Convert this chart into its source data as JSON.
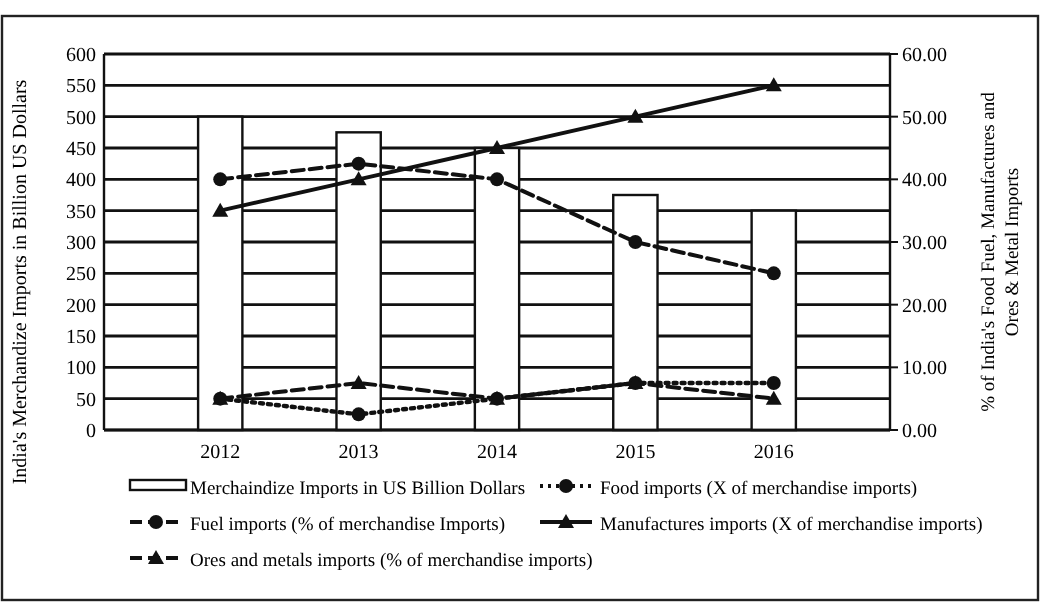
{
  "chart_data": {
    "type": "bar",
    "ylabel": "India's Merchandize Imports in Billion US Dollars",
    "y2label": "% of India's Food Fuel, Manufactures and Ores & Metal Imports",
    "categories": [
      "2012",
      "2013",
      "2014",
      "2015",
      "2016"
    ],
    "ylim": [
      0,
      600
    ],
    "yticks": [
      0,
      50,
      100,
      150,
      200,
      250,
      300,
      350,
      400,
      450,
      500,
      550,
      600
    ],
    "y2lim": [
      0,
      60
    ],
    "y2ticks": [
      {
        "value": 0,
        "label": "0.00"
      },
      {
        "value": 10,
        "label": "10.00"
      },
      {
        "value": 20,
        "label": "20.00"
      },
      {
        "value": 30,
        "label": "30.00"
      },
      {
        "value": 40,
        "label": "40.00"
      },
      {
        "value": 50,
        "label": "50.00"
      },
      {
        "value": 60,
        "label": "60.00"
      }
    ],
    "grid": "y",
    "legend": "bottom",
    "series": [
      {
        "name": "Merchaindize Imports in US Billion Dollars",
        "color": "#ffffff",
        "values": [
          500,
          475,
          450,
          375,
          350
        ]
      },
      {
        "name": "Food imports (X of merchandise imports)",
        "type": "line",
        "axis": "y2",
        "color": "#111111",
        "marker": "circle",
        "line_style": "dotted",
        "values": [
          5,
          2.5,
          5,
          7.5,
          7.5
        ]
      },
      {
        "name": "Fuel imports (% of merchandise Imports)",
        "type": "line",
        "axis": "y2",
        "color": "#111111",
        "marker": "circle",
        "line_style": "dashed",
        "values": [
          40,
          42.5,
          40,
          30,
          25
        ]
      },
      {
        "name": "Manufactures imports (X of merchandise imports)",
        "type": "line",
        "axis": "y2",
        "color": "#111111",
        "marker": "triangle",
        "line_style": "solid",
        "values": [
          35,
          40,
          45,
          50,
          55
        ]
      },
      {
        "name": "Ores and metals imports (% of merchandise  imports)",
        "type": "line",
        "axis": "y2",
        "color": "#111111",
        "marker": "triangle",
        "line_style": "dashed",
        "values": [
          5,
          7.5,
          5,
          7.5,
          5
        ]
      }
    ]
  }
}
